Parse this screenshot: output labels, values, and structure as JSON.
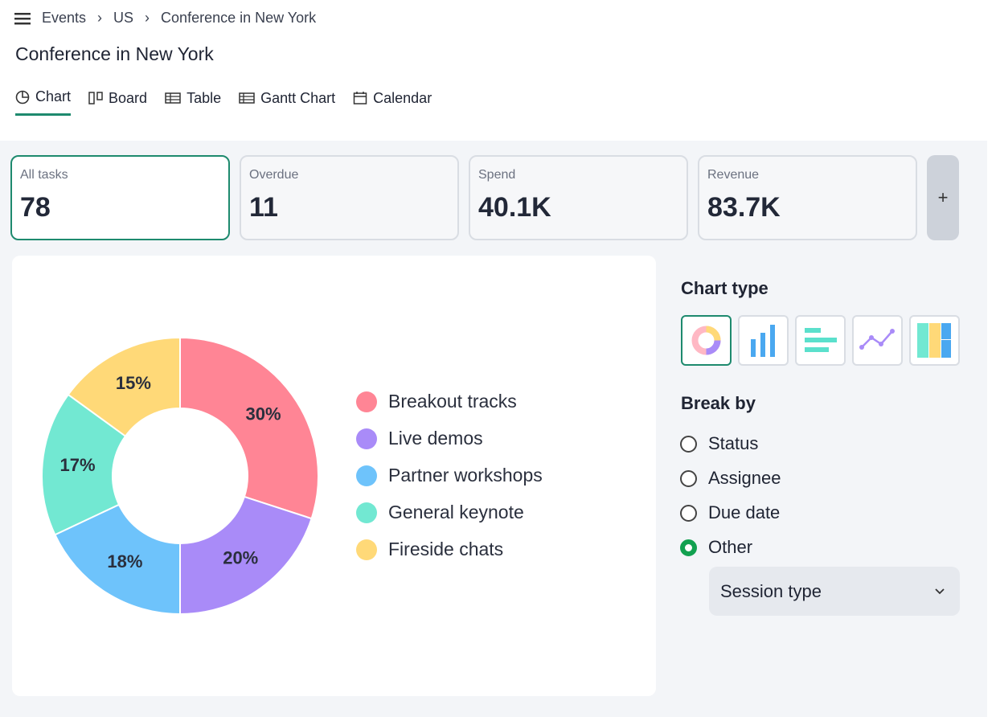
{
  "breadcrumb": [
    "Events",
    "US",
    "Conference in New York"
  ],
  "title": "Conference in New York",
  "tabs": [
    "Chart",
    "Board",
    "Table",
    "Gantt Chart",
    "Calendar"
  ],
  "stats": [
    {
      "label": "All tasks",
      "value": 78
    },
    {
      "label": "Overdue",
      "value": 11
    },
    {
      "label": "Spend",
      "value": "40.1K"
    },
    {
      "label": "Revenue",
      "value": "83.7K"
    }
  ],
  "add_button": "+",
  "chart_data": {
    "type": "donut",
    "categories": [
      "Breakout tracks",
      "Live demos",
      "Partner workshops",
      "General keynote",
      "Fireside chats"
    ],
    "values": [
      30,
      20,
      18,
      17,
      15
    ],
    "value_labels": [
      "30%",
      "20%",
      "18%",
      "17%",
      "15%"
    ],
    "colors": [
      "#ff8595",
      "#a98bf8",
      "#6ec3fb",
      "#72e8d2",
      "#ffd978"
    ]
  },
  "panel": {
    "chart_type_heading": "Chart type",
    "break_by_heading": "Break by",
    "options": [
      "Status",
      "Assignee",
      "Due date",
      "Other"
    ],
    "dropdown": "Session type"
  }
}
